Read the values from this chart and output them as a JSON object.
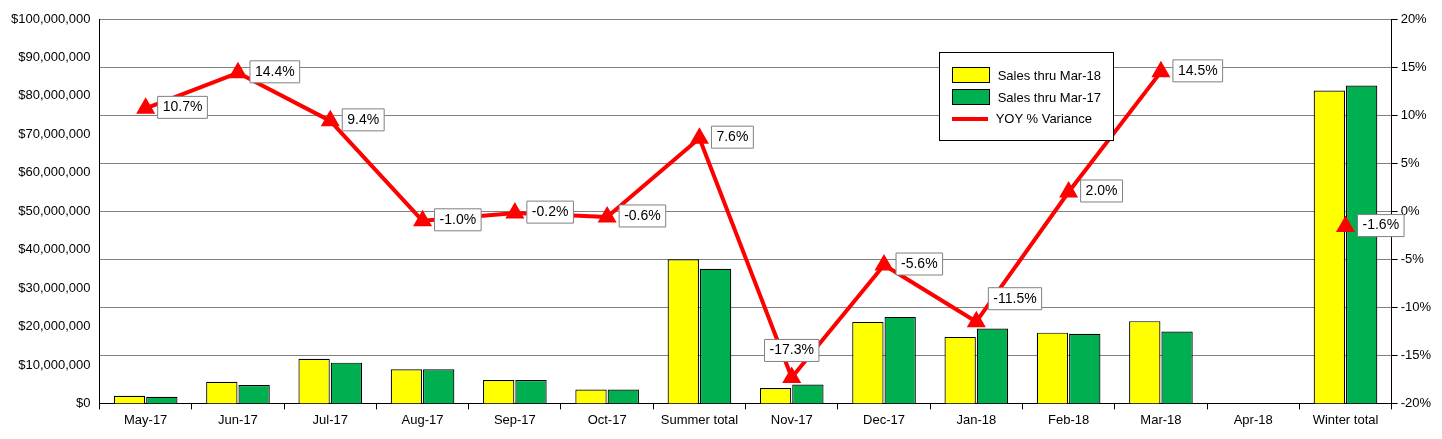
{
  "chart_data": {
    "type": "bar",
    "categories": [
      "May-17",
      "Jun-17",
      "Jul-17",
      "Aug-17",
      "Sep-17",
      "Oct-17",
      "Summer total",
      "Nov-17",
      "Dec-17",
      "Jan-18",
      "Feb-18",
      "Mar-18",
      "Apr-18",
      "Winter total"
    ],
    "series": [
      {
        "name": "Sales thru Mar-18",
        "color": "#ffff00",
        "values": [
          2000000,
          5600000,
          11600000,
          8900000,
          6100000,
          3600000,
          37500000,
          4000000,
          21200000,
          17300000,
          18400000,
          21400000,
          null,
          81400000
        ]
      },
      {
        "name": "Sales thru Mar-17",
        "color": "#00b050",
        "values": [
          1700000,
          4800000,
          10600000,
          8900000,
          6100000,
          3600000,
          35000000,
          4900000,
          22500000,
          19500000,
          18100000,
          18700000,
          null,
          82700000
        ]
      },
      {
        "name": "YOY % Variance",
        "type": "line",
        "axis": "y2",
        "color": "#ff0000",
        "marker": "triangle",
        "line_style": "solid",
        "values": [
          10.7,
          14.4,
          9.4,
          -1.0,
          -0.2,
          -0.6,
          7.6,
          -17.3,
          -5.6,
          -11.5,
          2.0,
          14.5,
          null,
          -1.6
        ],
        "value_labels": [
          "10.7%",
          "14.4%",
          "9.4%",
          "-1.0%",
          "-0.2%",
          "-0.6%",
          "7.6%",
          "-17.3%",
          "-5.6%",
          "-11.5%",
          "2.0%",
          "14.5%",
          null,
          "-1.6%"
        ]
      }
    ],
    "ylim": [
      0,
      100000000
    ],
    "yticks": [
      {
        "value": 0,
        "label": "$0"
      },
      {
        "value": 10000000,
        "label": "$10,000,000"
      },
      {
        "value": 20000000,
        "label": "$20,000,000"
      },
      {
        "value": 30000000,
        "label": "$30,000,000"
      },
      {
        "value": 40000000,
        "label": "$40,000,000"
      },
      {
        "value": 50000000,
        "label": "$50,000,000"
      },
      {
        "value": 60000000,
        "label": "$60,000,000"
      },
      {
        "value": 70000000,
        "label": "$70,000,000"
      },
      {
        "value": 80000000,
        "label": "$80,000,000"
      },
      {
        "value": 90000000,
        "label": "$90,000,000"
      },
      {
        "value": 100000000,
        "label": "$100,000,000"
      }
    ],
    "y2lim": [
      -20,
      20
    ],
    "y2ticks": [
      {
        "value": -20,
        "label": "-20%"
      },
      {
        "value": -15,
        "label": "-15%"
      },
      {
        "value": -10,
        "label": "-10%"
      },
      {
        "value": -5,
        "label": "-5%"
      },
      {
        "value": 0,
        "label": "0%"
      },
      {
        "value": 5,
        "label": "5%"
      },
      {
        "value": 10,
        "label": "10%"
      },
      {
        "value": 15,
        "label": "15%"
      },
      {
        "value": 20,
        "label": "20%"
      }
    ],
    "grid": "y",
    "legend": "top right"
  }
}
